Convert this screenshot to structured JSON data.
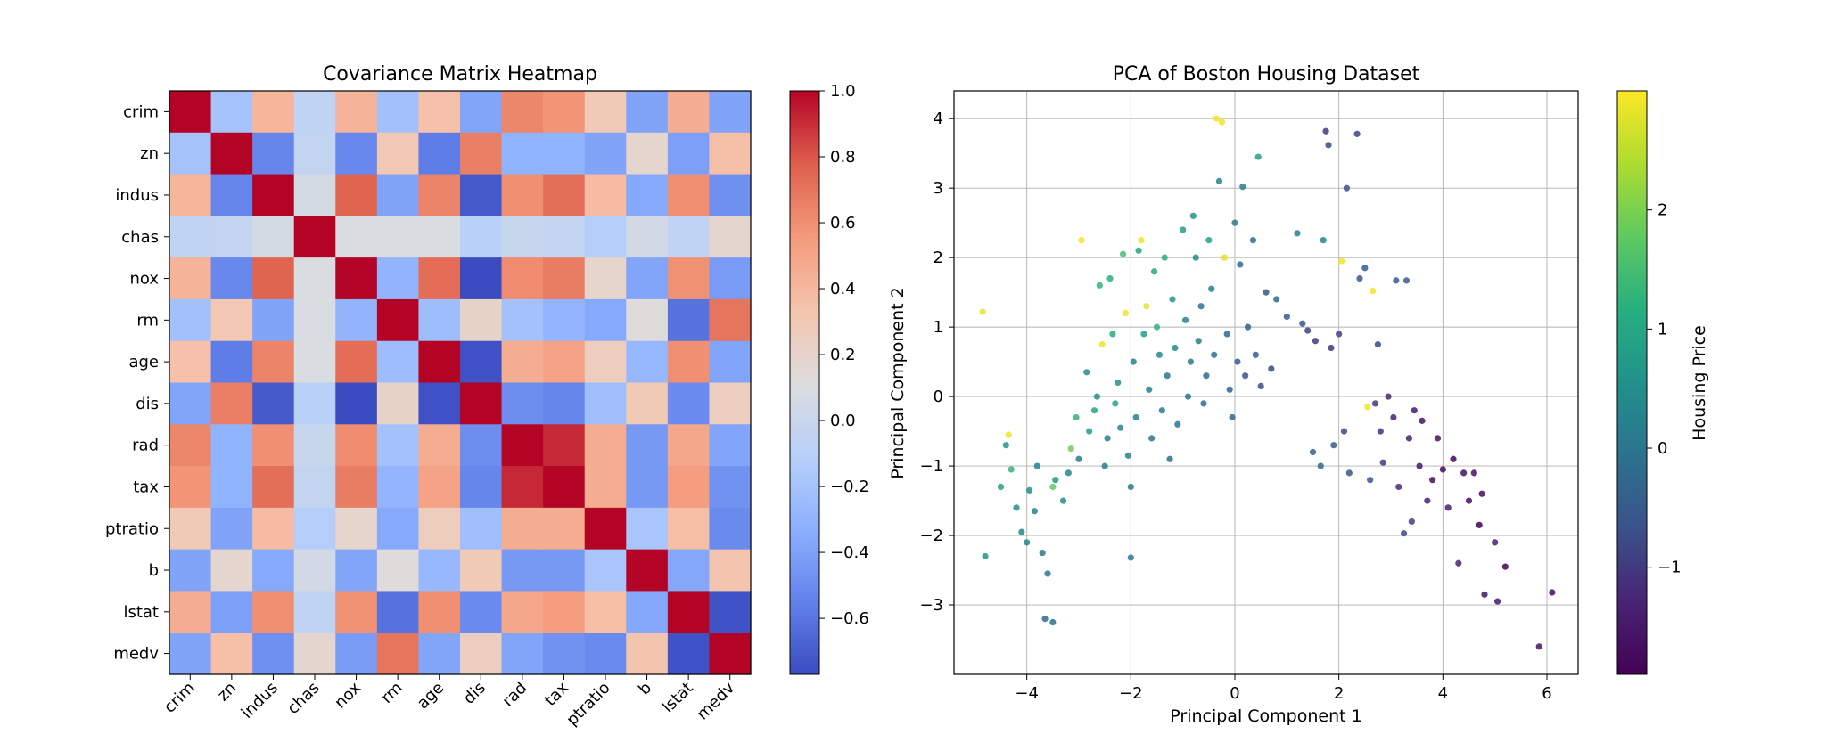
{
  "chart_data": [
    {
      "type": "heatmap",
      "title": "Covariance Matrix Heatmap",
      "xlabel": "",
      "ylabel": "",
      "labels": [
        "crim",
        "zn",
        "indus",
        "chas",
        "nox",
        "rm",
        "age",
        "dis",
        "rad",
        "tax",
        "ptratio",
        "b",
        "lstat",
        "medv"
      ],
      "matrix": [
        [
          1.0,
          -0.2,
          0.41,
          -0.06,
          0.42,
          -0.22,
          0.35,
          -0.38,
          0.63,
          0.58,
          0.29,
          -0.39,
          0.46,
          -0.39
        ],
        [
          -0.2,
          1.0,
          -0.53,
          -0.04,
          -0.52,
          0.31,
          -0.57,
          0.66,
          -0.31,
          -0.31,
          -0.39,
          0.18,
          -0.41,
          0.36
        ],
        [
          0.41,
          -0.53,
          1.0,
          0.06,
          0.76,
          -0.39,
          0.64,
          -0.71,
          0.6,
          0.72,
          0.38,
          -0.36,
          0.6,
          -0.48
        ],
        [
          -0.06,
          -0.04,
          0.06,
          1.0,
          0.09,
          0.09,
          0.09,
          -0.1,
          -0.01,
          -0.04,
          -0.12,
          0.05,
          -0.05,
          0.18
        ],
        [
          0.42,
          -0.52,
          0.76,
          0.09,
          1.0,
          -0.3,
          0.73,
          -0.77,
          0.61,
          0.67,
          0.19,
          -0.38,
          0.59,
          -0.43
        ],
        [
          -0.22,
          0.31,
          -0.39,
          0.09,
          -0.3,
          1.0,
          -0.24,
          0.21,
          -0.21,
          -0.29,
          -0.36,
          0.13,
          -0.61,
          0.7
        ],
        [
          0.35,
          -0.57,
          0.64,
          0.09,
          0.73,
          -0.24,
          1.0,
          -0.75,
          0.46,
          0.51,
          0.26,
          -0.27,
          0.6,
          -0.38
        ],
        [
          -0.38,
          0.66,
          -0.71,
          -0.1,
          -0.77,
          0.21,
          -0.75,
          1.0,
          -0.49,
          -0.53,
          -0.23,
          0.29,
          -0.5,
          0.25
        ],
        [
          0.63,
          -0.31,
          0.6,
          -0.01,
          0.61,
          -0.21,
          0.46,
          -0.49,
          1.0,
          0.91,
          0.46,
          -0.44,
          0.49,
          -0.38
        ],
        [
          0.58,
          -0.31,
          0.72,
          -0.04,
          0.67,
          -0.29,
          0.51,
          -0.53,
          0.91,
          1.0,
          0.46,
          -0.44,
          0.54,
          -0.47
        ],
        [
          0.29,
          -0.39,
          0.38,
          -0.12,
          0.19,
          -0.36,
          0.26,
          -0.23,
          0.46,
          0.46,
          1.0,
          -0.18,
          0.37,
          -0.51
        ],
        [
          -0.39,
          0.18,
          -0.36,
          0.05,
          -0.38,
          0.13,
          -0.27,
          0.29,
          -0.44,
          -0.44,
          -0.18,
          1.0,
          -0.37,
          0.33
        ],
        [
          0.46,
          -0.41,
          0.6,
          -0.05,
          0.59,
          -0.61,
          0.6,
          -0.5,
          0.49,
          0.54,
          0.37,
          -0.37,
          1.0,
          -0.74
        ],
        [
          -0.39,
          0.36,
          -0.48,
          0.18,
          -0.43,
          0.7,
          -0.38,
          0.25,
          -0.38,
          -0.47,
          -0.51,
          0.33,
          -0.74,
          1.0
        ]
      ],
      "colormap": "coolwarm",
      "colorbar": {
        "min": -0.77,
        "max": 1.0,
        "ticks": [
          -0.6,
          -0.4,
          -0.2,
          0.0,
          0.2,
          0.4,
          0.6,
          0.8,
          1.0
        ],
        "tick_labels": [
          "−0.6",
          "−0.4",
          "−0.2",
          "0.0",
          "0.2",
          "0.4",
          "0.6",
          "0.8",
          "1.0"
        ]
      }
    },
    {
      "type": "scatter",
      "title": "PCA of Boston Housing Dataset",
      "xlabel": "Principal Component 1",
      "ylabel": "Principal Component 2",
      "xlim": [
        -5.4,
        6.6
      ],
      "ylim": [
        -4.0,
        4.4
      ],
      "xticks": [
        -4,
        -2,
        0,
        2,
        4,
        6
      ],
      "xtick_labels": [
        "−4",
        "−2",
        "0",
        "2",
        "4",
        "6"
      ],
      "yticks": [
        -3,
        -2,
        -1,
        0,
        1,
        2,
        3,
        4
      ],
      "ytick_labels": [
        "−3",
        "−2",
        "−1",
        "0",
        "1",
        "2",
        "3",
        "4"
      ],
      "grid": true,
      "colormap": "viridis",
      "colorbar": {
        "label": "Housing Price",
        "min": -1.9,
        "max": 3.0,
        "ticks": [
          -1,
          0,
          1,
          2
        ],
        "tick_labels": [
          "−1",
          "0",
          "1",
          "2"
        ]
      },
      "points": [
        {
          "x": -4.85,
          "y": 1.22,
          "c": 2.9
        },
        {
          "x": -4.8,
          "y": -2.3,
          "c": 0.6
        },
        {
          "x": -4.5,
          "y": -1.3,
          "c": 0.9
        },
        {
          "x": -4.4,
          "y": -0.7,
          "c": 0.7
        },
        {
          "x": -4.35,
          "y": -0.55,
          "c": 2.9
        },
        {
          "x": -4.3,
          "y": -1.05,
          "c": 1.3
        },
        {
          "x": -4.2,
          "y": -1.6,
          "c": 0.6
        },
        {
          "x": -4.1,
          "y": -1.95,
          "c": 0.4
        },
        {
          "x": -4.0,
          "y": -2.1,
          "c": 0.3
        },
        {
          "x": -3.95,
          "y": -1.35,
          "c": 0.5
        },
        {
          "x": -3.85,
          "y": -1.65,
          "c": 0.2
        },
        {
          "x": -3.8,
          "y": -1.0,
          "c": 0.3
        },
        {
          "x": -3.7,
          "y": -2.25,
          "c": 0.1
        },
        {
          "x": -3.65,
          "y": -3.2,
          "c": -0.2
        },
        {
          "x": -3.5,
          "y": -3.25,
          "c": -0.1
        },
        {
          "x": -3.6,
          "y": -2.55,
          "c": 0.0
        },
        {
          "x": -3.5,
          "y": -1.3,
          "c": 1.8
        },
        {
          "x": -3.45,
          "y": -1.2,
          "c": 0.7
        },
        {
          "x": -3.3,
          "y": -1.5,
          "c": 0.4
        },
        {
          "x": -3.2,
          "y": -1.1,
          "c": 0.3
        },
        {
          "x": -3.15,
          "y": -0.75,
          "c": 1.9
        },
        {
          "x": -3.05,
          "y": -0.3,
          "c": 1.3
        },
        {
          "x": -3.0,
          "y": -0.9,
          "c": 0.2
        },
        {
          "x": -2.95,
          "y": 2.25,
          "c": 2.9
        },
        {
          "x": -2.85,
          "y": 0.35,
          "c": 0.4
        },
        {
          "x": -2.8,
          "y": -0.5,
          "c": 0.8
        },
        {
          "x": -2.7,
          "y": -0.2,
          "c": 1.0
        },
        {
          "x": -2.65,
          "y": 0.0,
          "c": 0.5
        },
        {
          "x": -2.6,
          "y": 1.6,
          "c": 1.3
        },
        {
          "x": -2.55,
          "y": 0.75,
          "c": 2.9
        },
        {
          "x": -2.5,
          "y": -1.0,
          "c": 0.2
        },
        {
          "x": -2.45,
          "y": -0.6,
          "c": 0.1
        },
        {
          "x": -2.4,
          "y": 1.7,
          "c": 1.2
        },
        {
          "x": -2.35,
          "y": 0.9,
          "c": 1.1
        },
        {
          "x": -2.3,
          "y": -0.1,
          "c": 1.0
        },
        {
          "x": -2.25,
          "y": 0.2,
          "c": 0.6
        },
        {
          "x": -2.2,
          "y": -0.45,
          "c": 0.4
        },
        {
          "x": -2.15,
          "y": 2.05,
          "c": 1.5
        },
        {
          "x": -2.1,
          "y": 1.2,
          "c": 2.9
        },
        {
          "x": -2.05,
          "y": -0.85,
          "c": 0.3
        },
        {
          "x": -2.0,
          "y": -1.3,
          "c": 0.1
        },
        {
          "x": -2.0,
          "y": -2.32,
          "c": 0.0
        },
        {
          "x": -1.95,
          "y": 0.5,
          "c": 0.3
        },
        {
          "x": -1.9,
          "y": -0.3,
          "c": 0.3
        },
        {
          "x": -1.85,
          "y": 2.1,
          "c": 1.0
        },
        {
          "x": -1.8,
          "y": 2.25,
          "c": 2.9
        },
        {
          "x": -1.75,
          "y": 0.9,
          "c": 0.8
        },
        {
          "x": -1.7,
          "y": 1.3,
          "c": 2.8
        },
        {
          "x": -1.65,
          "y": 0.1,
          "c": 0.2
        },
        {
          "x": -1.6,
          "y": -0.6,
          "c": 0.0
        },
        {
          "x": -1.55,
          "y": 1.8,
          "c": 1.0
        },
        {
          "x": -1.5,
          "y": 1.0,
          "c": 1.3
        },
        {
          "x": -1.45,
          "y": 0.6,
          "c": 0.4
        },
        {
          "x": -1.4,
          "y": -0.2,
          "c": 0.2
        },
        {
          "x": -1.35,
          "y": 2.0,
          "c": 1.2
        },
        {
          "x": -1.3,
          "y": 0.3,
          "c": 0.1
        },
        {
          "x": -1.25,
          "y": -0.9,
          "c": -0.1
        },
        {
          "x": -1.2,
          "y": 1.4,
          "c": 0.7
        },
        {
          "x": -1.15,
          "y": 0.7,
          "c": 0.5
        },
        {
          "x": -1.1,
          "y": -0.4,
          "c": 0.0
        },
        {
          "x": -1.0,
          "y": 2.4,
          "c": 0.8
        },
        {
          "x": -0.95,
          "y": 1.1,
          "c": 0.3
        },
        {
          "x": -0.9,
          "y": 0.0,
          "c": 0.0
        },
        {
          "x": -0.85,
          "y": 0.5,
          "c": 0.1
        },
        {
          "x": -0.8,
          "y": 2.6,
          "c": 0.6
        },
        {
          "x": -0.75,
          "y": 2.0,
          "c": 0.4
        },
        {
          "x": -0.7,
          "y": 0.8,
          "c": 0.2
        },
        {
          "x": -0.65,
          "y": 1.3,
          "c": 0.0
        },
        {
          "x": -0.6,
          "y": -0.1,
          "c": -0.1
        },
        {
          "x": -0.55,
          "y": 0.3,
          "c": -0.2
        },
        {
          "x": -0.5,
          "y": 2.25,
          "c": 0.9
        },
        {
          "x": -0.45,
          "y": 1.55,
          "c": 0.2
        },
        {
          "x": -0.4,
          "y": 0.6,
          "c": -0.1
        },
        {
          "x": -0.35,
          "y": 4.0,
          "c": 2.9
        },
        {
          "x": -0.3,
          "y": 3.1,
          "c": 0.3
        },
        {
          "x": -0.25,
          "y": 3.95,
          "c": 2.9
        },
        {
          "x": -0.2,
          "y": 2.0,
          "c": 2.8
        },
        {
          "x": -0.15,
          "y": 0.9,
          "c": -0.3
        },
        {
          "x": -0.1,
          "y": 0.1,
          "c": -0.4
        },
        {
          "x": -0.05,
          "y": -0.3,
          "c": -0.3
        },
        {
          "x": 0.0,
          "y": 2.5,
          "c": 0.1
        },
        {
          "x": 0.05,
          "y": 0.5,
          "c": -0.5
        },
        {
          "x": 0.1,
          "y": 1.9,
          "c": -0.2
        },
        {
          "x": 0.15,
          "y": 3.02,
          "c": 0.2
        },
        {
          "x": 0.2,
          "y": 0.3,
          "c": -0.6
        },
        {
          "x": 0.25,
          "y": 1.0,
          "c": -0.4
        },
        {
          "x": 0.35,
          "y": 2.25,
          "c": -0.1
        },
        {
          "x": 0.4,
          "y": 0.6,
          "c": -0.5
        },
        {
          "x": 0.45,
          "y": 3.45,
          "c": 0.8
        },
        {
          "x": 0.5,
          "y": 0.15,
          "c": -0.7
        },
        {
          "x": 0.6,
          "y": 1.5,
          "c": -0.6
        },
        {
          "x": 0.7,
          "y": 0.4,
          "c": -0.8
        },
        {
          "x": 0.8,
          "y": 1.4,
          "c": -0.3
        },
        {
          "x": 1.0,
          "y": 1.15,
          "c": -0.5
        },
        {
          "x": 1.2,
          "y": 2.35,
          "c": 0.2
        },
        {
          "x": 1.3,
          "y": 1.05,
          "c": -0.6
        },
        {
          "x": 1.4,
          "y": 0.95,
          "c": -0.9
        },
        {
          "x": 1.5,
          "y": -0.8,
          "c": -0.4
        },
        {
          "x": 1.55,
          "y": 0.8,
          "c": -1.0
        },
        {
          "x": 1.65,
          "y": -1.0,
          "c": -0.3
        },
        {
          "x": 1.7,
          "y": 2.25,
          "c": 0.3
        },
        {
          "x": 1.75,
          "y": 3.82,
          "c": -1.0
        },
        {
          "x": 1.8,
          "y": 3.62,
          "c": -0.8
        },
        {
          "x": 1.85,
          "y": 0.7,
          "c": -1.1
        },
        {
          "x": 1.9,
          "y": -0.7,
          "c": -0.5
        },
        {
          "x": 2.0,
          "y": 0.9,
          "c": -0.9
        },
        {
          "x": 2.05,
          "y": 1.95,
          "c": 2.9
        },
        {
          "x": 2.1,
          "y": -0.5,
          "c": -0.8
        },
        {
          "x": 2.15,
          "y": 3.0,
          "c": -0.7
        },
        {
          "x": 2.2,
          "y": -1.1,
          "c": -0.6
        },
        {
          "x": 2.35,
          "y": 3.78,
          "c": -0.9
        },
        {
          "x": 2.4,
          "y": 1.7,
          "c": -0.5
        },
        {
          "x": 2.5,
          "y": 1.85,
          "c": -0.4
        },
        {
          "x": 2.55,
          "y": -0.15,
          "c": 2.9
        },
        {
          "x": 2.6,
          "y": -1.2,
          "c": -0.6
        },
        {
          "x": 2.65,
          "y": 1.52,
          "c": 2.9
        },
        {
          "x": 2.7,
          "y": -0.1,
          "c": -1.0
        },
        {
          "x": 2.75,
          "y": 0.75,
          "c": -0.8
        },
        {
          "x": 2.8,
          "y": -0.5,
          "c": -1.1
        },
        {
          "x": 2.85,
          "y": -0.95,
          "c": -1.0
        },
        {
          "x": 2.95,
          "y": 0.0,
          "c": -1.2
        },
        {
          "x": 3.05,
          "y": -0.3,
          "c": -1.3
        },
        {
          "x": 3.1,
          "y": 1.67,
          "c": -0.6
        },
        {
          "x": 3.15,
          "y": -1.3,
          "c": -1.2
        },
        {
          "x": 3.25,
          "y": -1.97,
          "c": -0.8
        },
        {
          "x": 3.3,
          "y": 1.67,
          "c": -0.5
        },
        {
          "x": 3.35,
          "y": -0.6,
          "c": -1.4
        },
        {
          "x": 3.4,
          "y": -1.8,
          "c": -0.9
        },
        {
          "x": 3.45,
          "y": -0.2,
          "c": -1.5
        },
        {
          "x": 3.55,
          "y": -1.0,
          "c": -1.5
        },
        {
          "x": 3.6,
          "y": -0.35,
          "c": -1.6
        },
        {
          "x": 3.7,
          "y": -1.5,
          "c": -1.3
        },
        {
          "x": 3.8,
          "y": -1.2,
          "c": -1.7
        },
        {
          "x": 3.9,
          "y": -0.6,
          "c": -1.6
        },
        {
          "x": 4.0,
          "y": -1.05,
          "c": -1.7
        },
        {
          "x": 4.1,
          "y": -1.6,
          "c": -1.4
        },
        {
          "x": 4.2,
          "y": -0.9,
          "c": -1.8
        },
        {
          "x": 4.3,
          "y": -2.4,
          "c": -1.3
        },
        {
          "x": 4.4,
          "y": -1.1,
          "c": -1.6
        },
        {
          "x": 4.5,
          "y": -1.5,
          "c": -1.7
        },
        {
          "x": 4.6,
          "y": -1.1,
          "c": -1.6
        },
        {
          "x": 4.7,
          "y": -1.85,
          "c": -1.9
        },
        {
          "x": 4.75,
          "y": -1.4,
          "c": -1.7
        },
        {
          "x": 4.8,
          "y": -2.85,
          "c": -1.6
        },
        {
          "x": 5.0,
          "y": -2.1,
          "c": -1.4
        },
        {
          "x": 5.05,
          "y": -2.95,
          "c": -1.5
        },
        {
          "x": 5.2,
          "y": -2.45,
          "c": -1.9
        },
        {
          "x": 5.85,
          "y": -3.6,
          "c": -1.6
        },
        {
          "x": 6.1,
          "y": -2.82,
          "c": -1.7
        }
      ]
    }
  ]
}
